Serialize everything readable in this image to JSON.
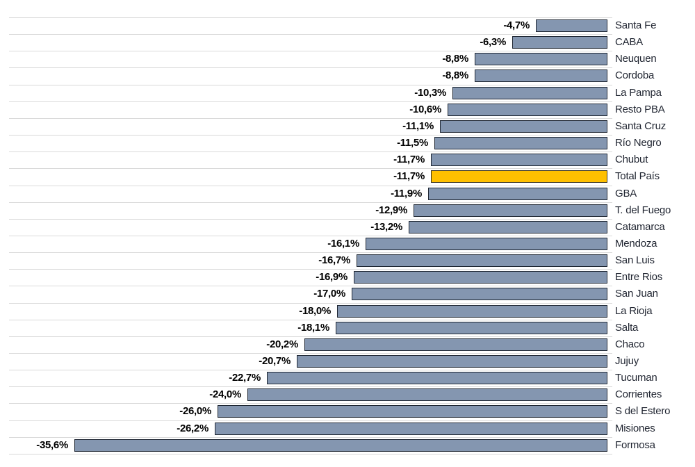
{
  "chart_data": {
    "type": "bar",
    "orientation": "horizontal",
    "title": "",
    "xlabel": "",
    "ylabel": "",
    "xlim": [
      -40,
      0
    ],
    "grid": true,
    "legend": false,
    "categories": [
      "Santa Fe",
      "CABA",
      "Neuquen",
      "Cordoba",
      "La Pampa",
      "Resto PBA",
      "Santa Cruz",
      "Río Negro",
      "Chubut",
      "Total País",
      "GBA",
      "T. del Fuego",
      "Catamarca",
      "Mendoza",
      "San Luis",
      "Entre Rios",
      "San Juan",
      "La Rioja",
      "Salta",
      "Chaco",
      "Jujuy",
      "Tucuman",
      "Corrientes",
      "S del Estero",
      "Misiones",
      "Formosa"
    ],
    "values": [
      -4.7,
      -6.3,
      -8.8,
      -8.8,
      -10.3,
      -10.6,
      -11.1,
      -11.5,
      -11.7,
      -11.7,
      -11.9,
      -12.9,
      -13.2,
      -16.1,
      -16.7,
      -16.9,
      -17.0,
      -18.0,
      -18.1,
      -20.2,
      -20.7,
      -22.7,
      -24.0,
      -26.0,
      -26.2,
      -35.6
    ],
    "value_labels": [
      "-4,7%",
      "-6,3%",
      "-8,8%",
      "-8,8%",
      "-10,3%",
      "-10,6%",
      "-11,1%",
      "-11,5%",
      "-11,7%",
      "-11,7%",
      "-11,9%",
      "-12,9%",
      "-13,2%",
      "-16,1%",
      "-16,7%",
      "-16,9%",
      "-17,0%",
      "-18,0%",
      "-18,1%",
      "-20,2%",
      "-20,7%",
      "-22,7%",
      "-24,0%",
      "-26,0%",
      "-26,2%",
      "-35,6%"
    ],
    "highlight_category": "Total País",
    "highlight_index": 9,
    "colors": {
      "bar_fill": "#8496B0",
      "bar_border": "#1F2733",
      "highlight_fill": "#FFC000",
      "highlight_border": "#38321F",
      "gridline": "#D9D9D9",
      "value_text": "#000000",
      "category_text": "#1F2430"
    }
  }
}
